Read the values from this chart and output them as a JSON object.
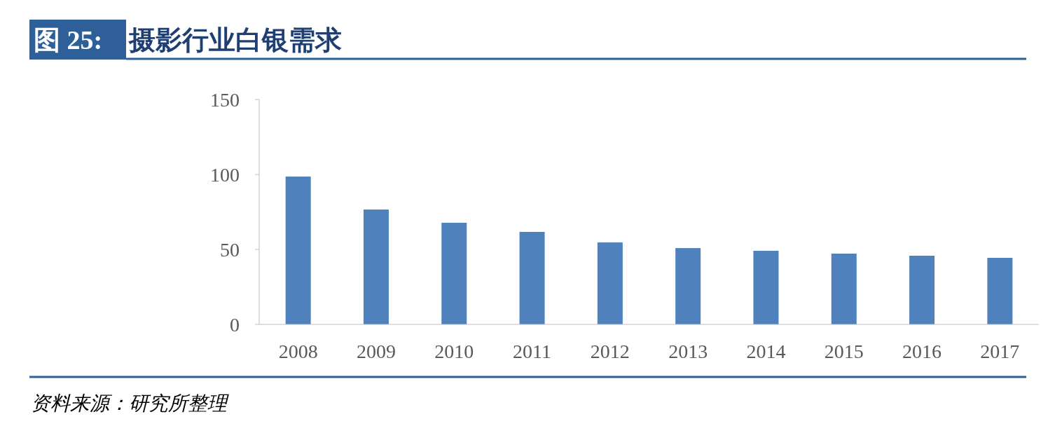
{
  "chart_data": {
    "type": "bar",
    "title": "图 25: 摄影行业白银需求",
    "categories": [
      "2008",
      "2009",
      "2010",
      "2011",
      "2012",
      "2013",
      "2014",
      "2015",
      "2016",
      "2017"
    ],
    "values": [
      98.6,
      76.6,
      67.8,
      61.7,
      54.7,
      50.9,
      49.1,
      47.2,
      45.8,
      44.4
    ],
    "color": "#4f81bd",
    "ylim": [
      0,
      150
    ],
    "yticks": [
      0,
      50,
      100,
      150
    ],
    "grid": false,
    "annotations": [
      "资料来源：研究所整理"
    ]
  }
}
